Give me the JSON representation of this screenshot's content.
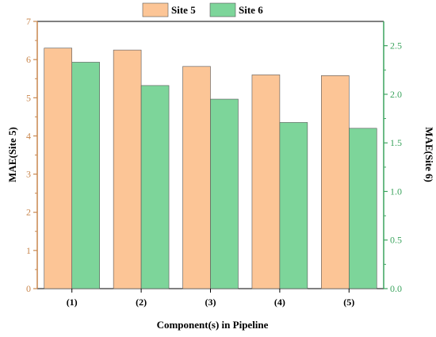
{
  "chart_data": {
    "type": "bar",
    "categories": [
      "(1)",
      "(2)",
      "(3)",
      "(4)",
      "(5)"
    ],
    "series": [
      {
        "name": "Site 5",
        "axis": "left",
        "color": "#fcc596",
        "values": [
          6.3,
          6.25,
          5.82,
          5.6,
          5.58
        ]
      },
      {
        "name": "Site 6",
        "axis": "right",
        "color": "#7dd59a",
        "values": [
          2.33,
          2.09,
          1.95,
          1.71,
          1.65
        ]
      }
    ],
    "xlabel": "Component(s) in Pipeline",
    "ylabel_left": "MAE(Site 5)",
    "ylabel_right": "MAE(Site 6)",
    "ylim_left": [
      0,
      7
    ],
    "ylim_right": [
      0,
      2.75
    ],
    "yticks_left": [
      "0",
      "1",
      "2",
      "3",
      "4",
      "5",
      "6",
      "7"
    ],
    "yticks_right": [
      "0.0",
      "0.5",
      "1.0",
      "1.5",
      "2.0",
      "2.5"
    ],
    "left_axis_color": "#c9874e",
    "right_axis_color": "#3ca45e",
    "legend_position": "top-center",
    "grid": false
  }
}
